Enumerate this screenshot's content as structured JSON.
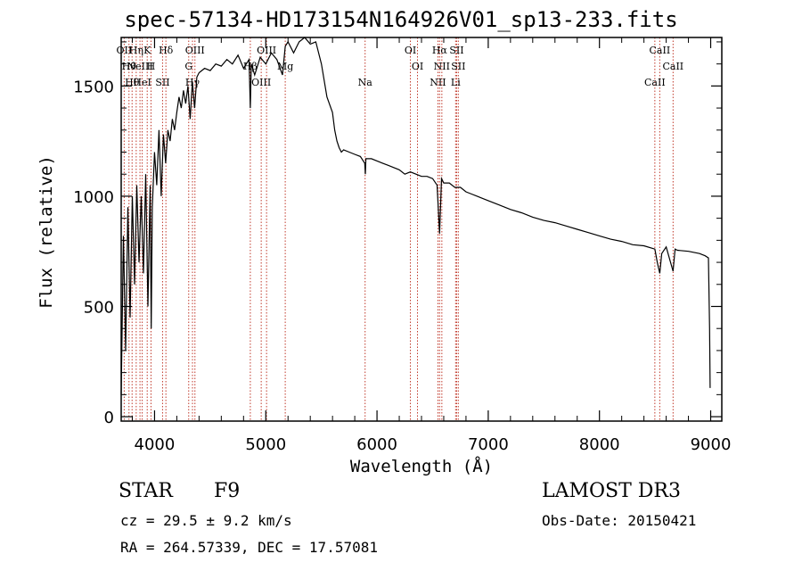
{
  "chart_data": {
    "type": "line",
    "title": "spec-57134-HD173154N164926V01_sp13-233.fits",
    "xlabel": "Wavelength (Å)",
    "ylabel": "Flux (relative)",
    "xlim": [
      3700,
      9100
    ],
    "ylim": [
      -20,
      1720
    ],
    "xticks": [
      4000,
      5000,
      6000,
      7000,
      8000,
      9000
    ],
    "yticks": [
      0,
      500,
      1000,
      1500
    ],
    "series": [
      {
        "name": "spectrum",
        "x": [
          3700,
          3720,
          3740,
          3760,
          3780,
          3800,
          3820,
          3840,
          3860,
          3880,
          3900,
          3920,
          3940,
          3960,
          3970,
          3980,
          4000,
          4020,
          4040,
          4060,
          4080,
          4100,
          4120,
          4140,
          4160,
          4180,
          4200,
          4220,
          4240,
          4260,
          4280,
          4300,
          4320,
          4340,
          4360,
          4380,
          4400,
          4450,
          4500,
          4550,
          4600,
          4650,
          4700,
          4750,
          4800,
          4850,
          4861,
          4870,
          4900,
          4950,
          5000,
          5050,
          5100,
          5150,
          5175,
          5200,
          5250,
          5300,
          5350,
          5400,
          5450,
          5500,
          5550,
          5600,
          5620,
          5640,
          5660,
          5680,
          5700,
          5750,
          5800,
          5850,
          5890,
          5895,
          5900,
          5950,
          6000,
          6050,
          6100,
          6150,
          6200,
          6250,
          6300,
          6350,
          6400,
          6450,
          6500,
          6540,
          6563,
          6580,
          6600,
          6650,
          6700,
          6750,
          6800,
          6850,
          6900,
          6950,
          7000,
          7100,
          7200,
          7300,
          7400,
          7500,
          7600,
          7700,
          7800,
          7900,
          8000,
          8100,
          8200,
          8300,
          8400,
          8498,
          8520,
          8542,
          8560,
          8600,
          8662,
          8680,
          8700,
          8800,
          8900,
          8950,
          8980,
          8990,
          8995
        ],
        "y": [
          100,
          820,
          300,
          950,
          450,
          1000,
          600,
          1050,
          700,
          1000,
          650,
          1100,
          500,
          1050,
          400,
          950,
          1200,
          1050,
          1300,
          1000,
          1280,
          1150,
          1300,
          1250,
          1350,
          1300,
          1380,
          1450,
          1400,
          1480,
          1420,
          1500,
          1350,
          1520,
          1400,
          1540,
          1560,
          1580,
          1570,
          1600,
          1590,
          1620,
          1600,
          1640,
          1580,
          1620,
          1400,
          1600,
          1550,
          1630,
          1600,
          1650,
          1620,
          1550,
          1680,
          1700,
          1650,
          1700,
          1720,
          1690,
          1700,
          1600,
          1450,
          1380,
          1300,
          1250,
          1220,
          1200,
          1210,
          1200,
          1190,
          1180,
          1150,
          1100,
          1170,
          1170,
          1160,
          1150,
          1140,
          1130,
          1120,
          1100,
          1110,
          1100,
          1090,
          1090,
          1080,
          1050,
          830,
          1080,
          1060,
          1060,
          1040,
          1040,
          1020,
          1010,
          1000,
          990,
          980,
          960,
          940,
          925,
          905,
          890,
          880,
          865,
          850,
          835,
          820,
          805,
          795,
          780,
          775,
          760,
          700,
          650,
          740,
          770,
          660,
          760,
          755,
          750,
          740,
          730,
          720,
          400,
          130
        ]
      }
    ],
    "lines": [
      {
        "x": 3727,
        "label": "OII"
      },
      {
        "x": 3770,
        "label": "Hθ"
      },
      {
        "x": 3798,
        "label": "Hθ"
      },
      {
        "x": 3835,
        "label": "Hη"
      },
      {
        "x": 3869,
        "label": "NeIII"
      },
      {
        "x": 3889,
        "label": "HeI"
      },
      {
        "x": 3934,
        "label": "K"
      },
      {
        "x": 3968,
        "label": "H"
      },
      {
        "x": 4072,
        "label": "SII"
      },
      {
        "x": 4102,
        "label": "Hδ"
      },
      {
        "x": 4307,
        "label": "G"
      },
      {
        "x": 4341,
        "label": "Hγ"
      },
      {
        "x": 4363,
        "label": "OIII"
      },
      {
        "x": 4861,
        "label": "Hβ"
      },
      {
        "x": 4959,
        "label": "OIII"
      },
      {
        "x": 5007,
        "label": "OIII"
      },
      {
        "x": 5175,
        "label": "Mg"
      },
      {
        "x": 5893,
        "label": "Na"
      },
      {
        "x": 6300,
        "label": "OI"
      },
      {
        "x": 6364,
        "label": "OI"
      },
      {
        "x": 6548,
        "label": "NII"
      },
      {
        "x": 6563,
        "label": "Hα"
      },
      {
        "x": 6583,
        "label": "NII"
      },
      {
        "x": 6707,
        "label": "Li"
      },
      {
        "x": 6716,
        "label": "SII"
      },
      {
        "x": 6731,
        "label": "SII"
      },
      {
        "x": 8498,
        "label": "CaII"
      },
      {
        "x": 8542,
        "label": "CaII"
      },
      {
        "x": 8662,
        "label": "CaII"
      }
    ]
  },
  "info": {
    "object_type": "STAR",
    "subclass": "F9",
    "survey": "LAMOST DR3",
    "redshift": "cz = 29.5 ± 9.2 km/s",
    "obs_date": "Obs-Date: 20150421",
    "coords": "RA = 264.57339, DEC =  17.57081"
  }
}
